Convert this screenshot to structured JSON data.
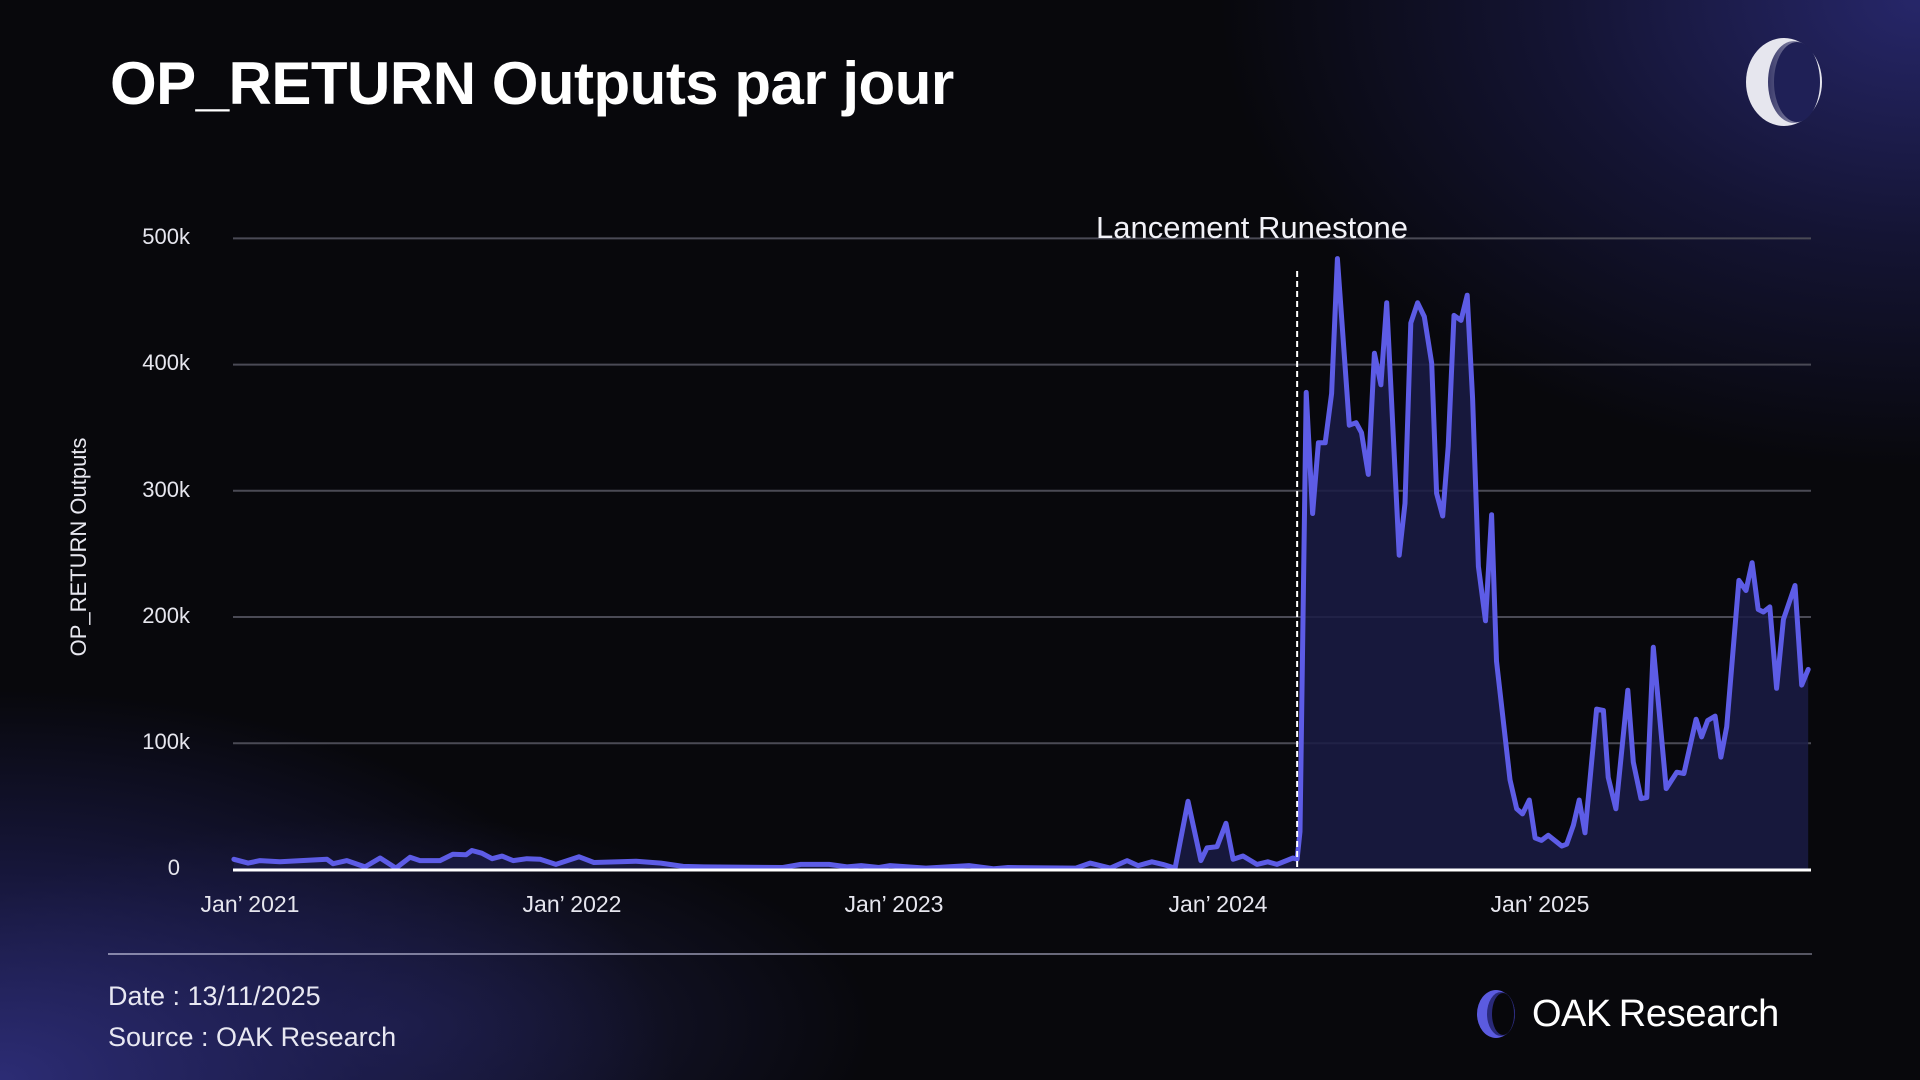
{
  "header": {
    "title": "OP_RETURN Outputs par jour"
  },
  "logo": {
    "name": "oak-ring-logo"
  },
  "colors": {
    "background": "#08080c",
    "line": "#5d5ce6",
    "fill": "#1a1b45",
    "grid": "#4a4a55",
    "axis": "#ffffff",
    "annotation_line": "#ffffff",
    "brand_accent": "#5b5be0"
  },
  "chart_data": {
    "type": "area",
    "title": "OP_RETURN Outputs par jour",
    "xlabel": "",
    "ylabel": "OP_RETURN Outputs",
    "x_unit": "decimal year",
    "y_unit": "thousands (k)",
    "ylim": [
      0,
      500
    ],
    "xlim": [
      2020.95,
      2025.84
    ],
    "y_ticks": [
      {
        "value": 0,
        "label": "0"
      },
      {
        "value": 100,
        "label": "100k"
      },
      {
        "value": 200,
        "label": "200k"
      },
      {
        "value": 300,
        "label": "300k"
      },
      {
        "value": 400,
        "label": "400k"
      },
      {
        "value": 500,
        "label": "500k"
      }
    ],
    "x_ticks": [
      {
        "value": 2021,
        "label": "Jan’ 2021"
      },
      {
        "value": 2022,
        "label": "Jan’ 2022"
      },
      {
        "value": 2023,
        "label": "Jan’ 2023"
      },
      {
        "value": 2024,
        "label": "Jan’ 2024"
      },
      {
        "value": 2025,
        "label": "Jan’ 2025"
      }
    ],
    "grid": true,
    "legend": null,
    "annotations": [
      {
        "type": "vline",
        "x": 2024.252,
        "label": "Lancement Runestone",
        "style": "dashed"
      }
    ],
    "series": [
      {
        "name": "OP_RETURN Outputs",
        "points": [
          [
            2020.95,
            8
          ],
          [
            2020.994,
            5
          ],
          [
            2021.031,
            7
          ],
          [
            2021.093,
            6
          ],
          [
            2021.239,
            8
          ],
          [
            2021.258,
            4.5
          ],
          [
            2021.301,
            7
          ],
          [
            2021.357,
            2
          ],
          [
            2021.404,
            9
          ],
          [
            2021.453,
            1
          ],
          [
            2021.497,
            9.6
          ],
          [
            2021.528,
            7
          ],
          [
            2021.59,
            7
          ],
          [
            2021.63,
            12
          ],
          [
            2021.671,
            11.6
          ],
          [
            2021.689,
            15
          ],
          [
            2021.72,
            12.8
          ],
          [
            2021.752,
            8.5
          ],
          [
            2021.783,
            10.5
          ],
          [
            2021.817,
            7
          ],
          [
            2021.86,
            8.5
          ],
          [
            2021.901,
            8
          ],
          [
            2021.95,
            4
          ],
          [
            2022.022,
            10
          ],
          [
            2022.068,
            5.5
          ],
          [
            2022.199,
            6.5
          ],
          [
            2022.276,
            5
          ],
          [
            2022.345,
            2.4
          ],
          [
            2022.41,
            2
          ],
          [
            2022.655,
            1.5
          ],
          [
            2022.711,
            4
          ],
          [
            2022.798,
            4
          ],
          [
            2022.854,
            2
          ],
          [
            2022.898,
            3
          ],
          [
            2022.953,
            1.5
          ],
          [
            2022.988,
            3
          ],
          [
            2023.099,
            1
          ],
          [
            2023.233,
            3
          ],
          [
            2023.311,
            0.5
          ],
          [
            2023.354,
            1.5
          ],
          [
            2023.565,
            1
          ],
          [
            2023.609,
            5
          ],
          [
            2023.671,
            1
          ],
          [
            2023.724,
            7
          ],
          [
            2023.758,
            3
          ],
          [
            2023.801,
            6
          ],
          [
            2023.835,
            4
          ],
          [
            2023.873,
            1
          ],
          [
            2023.913,
            54
          ],
          [
            2023.953,
            7
          ],
          [
            2023.972,
            17
          ],
          [
            2024.003,
            18
          ],
          [
            2024.031,
            36.5
          ],
          [
            2024.053,
            8
          ],
          [
            2024.084,
            10.6
          ],
          [
            2024.127,
            4
          ],
          [
            2024.161,
            6
          ],
          [
            2024.189,
            4
          ],
          [
            2024.239,
            9
          ],
          [
            2024.252,
            8
          ],
          [
            2024.261,
            30
          ],
          [
            2024.28,
            378
          ],
          [
            2024.3,
            282
          ],
          [
            2024.318,
            338
          ],
          [
            2024.339,
            338
          ],
          [
            2024.359,
            377
          ],
          [
            2024.377,
            484
          ],
          [
            2024.414,
            352
          ],
          [
            2024.435,
            354
          ],
          [
            2024.452,
            346
          ],
          [
            2024.473,
            313
          ],
          [
            2024.492,
            409
          ],
          [
            2024.512,
            384
          ],
          [
            2024.53,
            449
          ],
          [
            2024.569,
            249
          ],
          [
            2024.587,
            290
          ],
          [
            2024.605,
            433
          ],
          [
            2024.626,
            449
          ],
          [
            2024.647,
            438
          ],
          [
            2024.67,
            401
          ],
          [
            2024.685,
            298
          ],
          [
            2024.704,
            280
          ],
          [
            2024.721,
            335
          ],
          [
            2024.739,
            439
          ],
          [
            2024.761,
            435
          ],
          [
            2024.78,
            455
          ],
          [
            2024.797,
            373
          ],
          [
            2024.815,
            240
          ],
          [
            2024.837,
            197
          ],
          [
            2024.856,
            281
          ],
          [
            2024.871,
            165
          ],
          [
            2024.913,
            71
          ],
          [
            2024.934,
            48
          ],
          [
            2024.952,
            44
          ],
          [
            2024.973,
            55
          ],
          [
            2024.991,
            25
          ],
          [
            2025.011,
            23
          ],
          [
            2025.032,
            27
          ],
          [
            2025.074,
            18.5
          ],
          [
            2025.089,
            20
          ],
          [
            2025.11,
            35
          ],
          [
            2025.128,
            55
          ],
          [
            2025.146,
            29
          ],
          [
            2025.182,
            127
          ],
          [
            2025.203,
            126
          ],
          [
            2025.218,
            73
          ],
          [
            2025.242,
            48
          ],
          [
            2025.279,
            142
          ],
          [
            2025.296,
            85
          ],
          [
            2025.32,
            56
          ],
          [
            2025.338,
            57
          ],
          [
            2025.358,
            176
          ],
          [
            2025.398,
            64
          ],
          [
            2025.431,
            77
          ],
          [
            2025.453,
            76
          ],
          [
            2025.491,
            119
          ],
          [
            2025.508,
            105
          ],
          [
            2025.527,
            118
          ],
          [
            2025.55,
            121.5
          ],
          [
            2025.568,
            89
          ],
          [
            2025.586,
            113
          ],
          [
            2025.624,
            229
          ],
          [
            2025.646,
            221
          ],
          [
            2025.665,
            243
          ],
          [
            2025.684,
            206
          ],
          [
            2025.7,
            204
          ],
          [
            2025.72,
            208
          ],
          [
            2025.741,
            143.5
          ],
          [
            2025.762,
            198
          ],
          [
            2025.798,
            225
          ],
          [
            2025.819,
            146
          ],
          [
            2025.839,
            158.5
          ]
        ],
        "fill_from": 2024.252
      }
    ]
  },
  "axis": {
    "y_title": "OP_RETURN Outputs",
    "y_labels": [
      "500k",
      "400k",
      "300k",
      "200k",
      "100k",
      "0"
    ],
    "x_labels": [
      "Jan’ 2021",
      "Jan’ 2022",
      "Jan’ 2023",
      "Jan’ 2024",
      "Jan’ 2025"
    ]
  },
  "annotation": {
    "label": "Lancement Runestone"
  },
  "footer": {
    "date_line": "Date : 13/11/2025",
    "source_line": "Source : OAK Research",
    "brand_oak": "OAK",
    "brand_research": "Research"
  }
}
